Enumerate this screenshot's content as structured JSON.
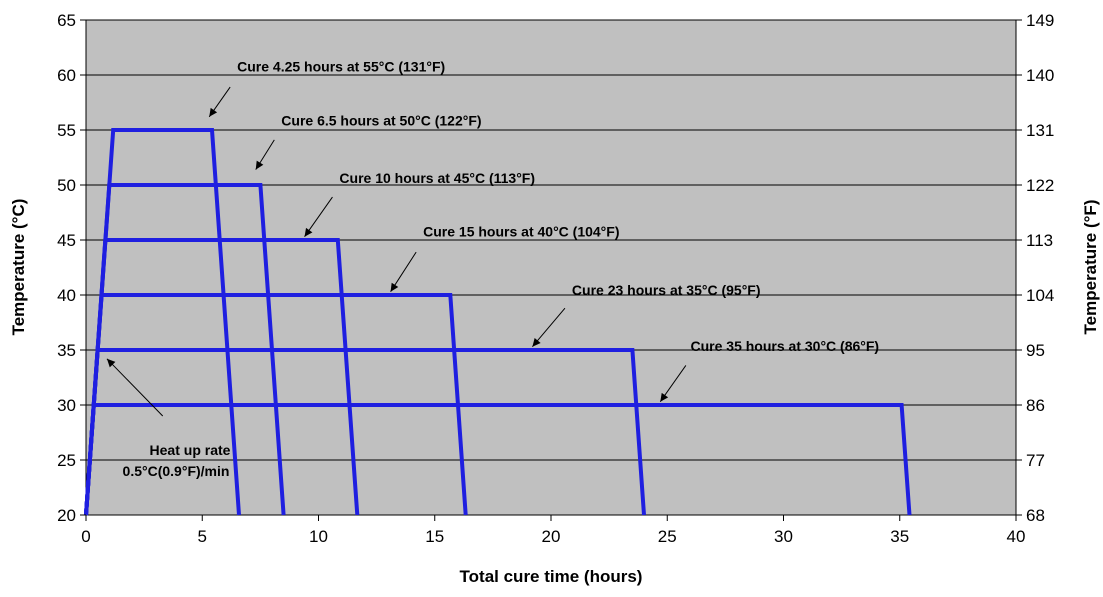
{
  "chart_data": {
    "type": "line",
    "xlabel": "Total cure time (hours)",
    "ylabel": "Temperature (°C)",
    "y2label": "Temperature (°F)",
    "xlim": [
      0,
      40
    ],
    "ylim": [
      20,
      65
    ],
    "x_ticks": [
      0,
      5,
      10,
      15,
      20,
      25,
      30,
      35,
      40
    ],
    "y_ticks": [
      20,
      25,
      30,
      35,
      40,
      45,
      50,
      55,
      60,
      65
    ],
    "y2_ticks": [
      "68",
      "77",
      "86",
      "95",
      "104",
      "113",
      "122",
      "131",
      "140",
      "149"
    ],
    "grid": "horizontal",
    "plot_background": "#c0c0c0",
    "series_color": "#1f1fe0",
    "series": [
      {
        "x": [
          0,
          1.17,
          5.42,
          6.58
        ],
        "y": [
          20,
          55,
          55,
          20
        ]
      },
      {
        "x": [
          0,
          1.0,
          7.5,
          8.5
        ],
        "y": [
          20,
          50,
          50,
          20
        ]
      },
      {
        "x": [
          0,
          0.83,
          10.83,
          11.67
        ],
        "y": [
          20,
          45,
          45,
          20
        ]
      },
      {
        "x": [
          0,
          0.67,
          15.67,
          16.33
        ],
        "y": [
          20,
          40,
          40,
          20
        ]
      },
      {
        "x": [
          0,
          0.5,
          23.5,
          24.0
        ],
        "y": [
          20,
          35,
          35,
          20
        ]
      },
      {
        "x": [
          0,
          0.33,
          35.08,
          35.42
        ],
        "y": [
          20,
          30,
          30,
          20
        ]
      }
    ],
    "annotations": [
      {
        "text": "Cure 4.25 hours at 55°C (131°F)",
        "x": 6.5,
        "y": 60.3,
        "arrow_from": [
          6.2,
          58.9
        ],
        "arrow_to": [
          5.3,
          56.2
        ]
      },
      {
        "text": "Cure 6.5 hours at 50°C (122°F)",
        "x": 8.4,
        "y": 55.4,
        "arrow_from": [
          8.1,
          54.1
        ],
        "arrow_to": [
          7.3,
          51.4
        ]
      },
      {
        "text": "Cure 10 hours at 45°C (113°F)",
        "x": 10.9,
        "y": 50.2,
        "arrow_from": [
          10.6,
          48.9
        ],
        "arrow_to": [
          9.4,
          45.3
        ]
      },
      {
        "text": "Cure 15 hours at 40°C (104°F)",
        "x": 14.5,
        "y": 45.3,
        "arrow_from": [
          14.2,
          43.9
        ],
        "arrow_to": [
          13.1,
          40.3
        ]
      },
      {
        "text": "Cure 23 hours at 35°C (95°F)",
        "x": 20.9,
        "y": 40.0,
        "arrow_from": [
          20.6,
          38.8
        ],
        "arrow_to": [
          19.2,
          35.3
        ]
      },
      {
        "text": "Cure 35 hours at 30°C (86°F)",
        "x": 26.0,
        "y": 34.9,
        "arrow_from": [
          25.8,
          33.6
        ],
        "arrow_to": [
          24.7,
          30.3
        ]
      }
    ],
    "heat_rate_label": [
      "Heat up rate",
      "0.5°C(0.9°F)/min"
    ],
    "heat_rate_arrow": {
      "from": [
        3.3,
        29.0
      ],
      "to": [
        0.9,
        34.2
      ]
    }
  }
}
